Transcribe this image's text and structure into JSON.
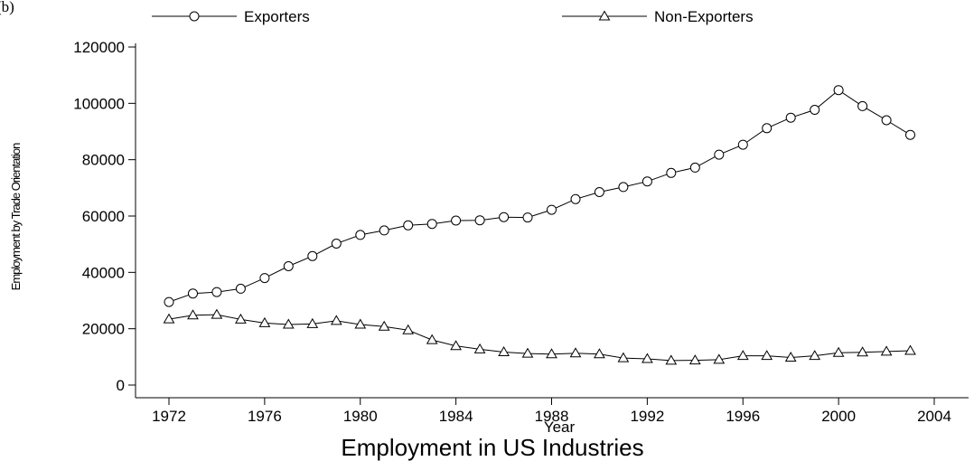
{
  "panel_label": "(b)",
  "chart_data": {
    "type": "line",
    "title": "Employment in US  Industries",
    "xlabel": "Year",
    "ylabel": "Employment by Trade Orientation",
    "xlim": [
      1971.5,
      2005
    ],
    "ylim": [
      0,
      120000
    ],
    "xticks": [
      1972,
      1976,
      1980,
      1984,
      1988,
      1992,
      1996,
      2000,
      2004
    ],
    "yticks": [
      0,
      20000,
      40000,
      60000,
      80000,
      100000,
      120000
    ],
    "grid": false,
    "legend_position": "top",
    "x": [
      1972,
      1973,
      1974,
      1975,
      1976,
      1977,
      1978,
      1979,
      1980,
      1981,
      1982,
      1983,
      1984,
      1985,
      1986,
      1987,
      1988,
      1989,
      1990,
      1991,
      1992,
      1993,
      1994,
      1995,
      1996,
      1997,
      1998,
      1999,
      2000,
      2001,
      2002,
      2003
    ],
    "series": [
      {
        "name": "Exporters",
        "marker": "circle",
        "values": [
          29500,
          32500,
          33000,
          34200,
          38000,
          42200,
          45800,
          50200,
          53300,
          54900,
          56700,
          57200,
          58400,
          58500,
          59600,
          59500,
          62200,
          66000,
          68500,
          70300,
          72300,
          75300,
          77200,
          81800,
          85300,
          91200,
          94900,
          97700,
          104700,
          99000,
          94000,
          88800
        ]
      },
      {
        "name": "Non-Exporters",
        "marker": "triangle",
        "values": [
          23400,
          24800,
          25000,
          23300,
          22000,
          21500,
          21700,
          22800,
          21500,
          20800,
          19500,
          16000,
          13900,
          12700,
          11700,
          11200,
          11000,
          11300,
          11000,
          9600,
          9300,
          8700,
          8800,
          9000,
          10400,
          10400,
          9800,
          10400,
          11500,
          11600,
          11900,
          12200
        ]
      }
    ]
  }
}
